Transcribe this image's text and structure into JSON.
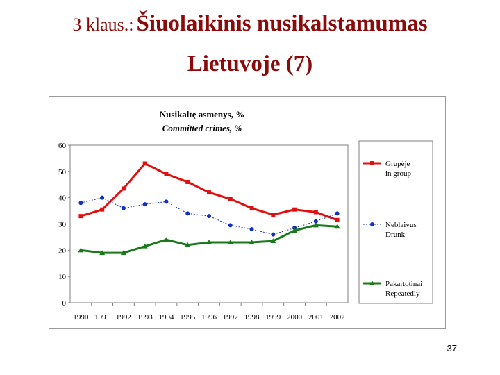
{
  "slide": {
    "title_prefix": "3 klaus.:",
    "title_line1": "Šiuolaikinis nusikalstamumas",
    "title_line2": "Lietuvoje (7)",
    "page_number": "37"
  },
  "chart_data": {
    "type": "line",
    "title": "Nusikaltę asmenys, %",
    "subtitle": "Committed crimes, %",
    "categories": [
      "1990",
      "1991",
      "1992",
      "1993",
      "1994",
      "1995",
      "1996",
      "1997",
      "1998",
      "1999",
      "2000",
      "2001",
      "2002"
    ],
    "ylim": [
      0,
      60
    ],
    "yticks": [
      "0",
      "10",
      "20",
      "30",
      "40",
      "50",
      "60"
    ],
    "grid": false,
    "legend": "right",
    "series": [
      {
        "name_lt": "Grupėje",
        "name_en": "in group",
        "color": "#e01010",
        "marker": "square",
        "values": [
          33,
          35.5,
          43.5,
          53,
          49,
          46,
          42,
          39.5,
          36,
          33.5,
          35.5,
          34.5,
          31.5
        ]
      },
      {
        "name_lt": "Neblaivus",
        "name_en": "Drunk",
        "color": "#1030c0",
        "marker": "circle",
        "values": [
          38,
          40,
          36,
          37.5,
          38.5,
          34,
          33,
          29.5,
          28,
          26,
          28.5,
          31,
          34
        ]
      },
      {
        "name_lt": "Pakartotinai",
        "name_en": "Repeatedly",
        "color": "#1a7a1a",
        "marker": "triangle",
        "values": [
          20,
          19,
          19,
          21.5,
          24,
          22,
          23,
          23,
          23,
          23.5,
          27.5,
          29.5,
          29
        ]
      }
    ]
  }
}
